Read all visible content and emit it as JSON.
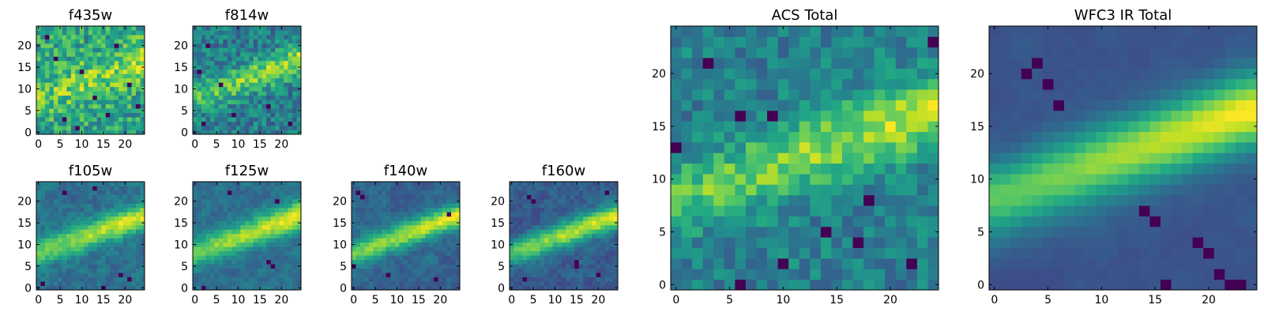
{
  "figure": {
    "description_free": true
  },
  "chart_data": [
    {
      "type": "heatmap",
      "title": "f435w",
      "grid_size": 25,
      "xticks": [
        0,
        5,
        10,
        15,
        20
      ],
      "yticks": [
        0,
        5,
        10,
        15,
        20
      ],
      "colormap": "viridis",
      "features": {
        "noise": 0.55,
        "band_strength": 0.35,
        "band_width": 5.0,
        "floor": 0.55,
        "dark_spots": [
          [
            4,
            17
          ],
          [
            10,
            14
          ],
          [
            6,
            3
          ],
          [
            13,
            8
          ],
          [
            21,
            11
          ],
          [
            9,
            1
          ],
          [
            2,
            22
          ],
          [
            18,
            20
          ],
          [
            16,
            4
          ],
          [
            23,
            6
          ]
        ],
        "smooth": 0,
        "seed": 11
      }
    },
    {
      "type": "heatmap",
      "title": "f814w",
      "grid_size": 25,
      "xticks": [
        0,
        5,
        10,
        15,
        20
      ],
      "yticks": [
        0,
        5,
        10,
        15,
        20
      ],
      "colormap": "viridis",
      "features": {
        "noise": 0.45,
        "band_strength": 0.6,
        "band_width": 3.5,
        "floor": 0.35,
        "dark_spots": [
          [
            2,
            2
          ],
          [
            6,
            11
          ],
          [
            3,
            20
          ],
          [
            17,
            6
          ],
          [
            9,
            4
          ],
          [
            1,
            14
          ],
          [
            22,
            2
          ]
        ],
        "smooth": 0,
        "seed": 23
      }
    },
    {
      "type": "heatmap",
      "title": "f105w",
      "grid_size": 25,
      "xticks": [
        0,
        5,
        10,
        15,
        20
      ],
      "yticks": [
        0,
        5,
        10,
        15,
        20
      ],
      "colormap": "viridis",
      "features": {
        "noise": 0.35,
        "band_strength": 0.75,
        "band_width": 3.0,
        "floor": 0.25,
        "dark_spots": [
          [
            13,
            23
          ],
          [
            21,
            2
          ],
          [
            19,
            3
          ],
          [
            1,
            1
          ],
          [
            15,
            0
          ],
          [
            6,
            22
          ]
        ],
        "smooth": 1,
        "seed": 37
      }
    },
    {
      "type": "heatmap",
      "title": "f125w",
      "grid_size": 25,
      "xticks": [
        0,
        5,
        10,
        15,
        20
      ],
      "yticks": [
        0,
        5,
        10,
        15,
        20
      ],
      "colormap": "viridis",
      "features": {
        "noise": 0.3,
        "band_strength": 0.8,
        "band_width": 3.2,
        "floor": 0.25,
        "dark_spots": [
          [
            2,
            0
          ],
          [
            17,
            6
          ],
          [
            18,
            5
          ],
          [
            19,
            20
          ],
          [
            8,
            22
          ]
        ],
        "smooth": 1,
        "seed": 41
      }
    },
    {
      "type": "heatmap",
      "title": "f140w",
      "grid_size": 25,
      "xticks": [
        0,
        5,
        10,
        15,
        20
      ],
      "yticks": [
        0,
        5,
        10,
        15,
        20
      ],
      "colormap": "viridis",
      "features": {
        "noise": 0.3,
        "band_strength": 0.85,
        "band_width": 2.8,
        "floor": 0.2,
        "dark_spots": [
          [
            1,
            22
          ],
          [
            2,
            21
          ],
          [
            8,
            3
          ],
          [
            19,
            2
          ],
          [
            22,
            17
          ],
          [
            0,
            5
          ]
        ],
        "smooth": 1,
        "seed": 53
      }
    },
    {
      "type": "heatmap",
      "title": "f160w",
      "grid_size": 25,
      "xticks": [
        0,
        5,
        10,
        15,
        20
      ],
      "yticks": [
        0,
        5,
        10,
        15,
        20
      ],
      "colormap": "viridis",
      "features": {
        "noise": 0.3,
        "band_strength": 0.85,
        "band_width": 2.8,
        "floor": 0.15,
        "dark_spots": [
          [
            4,
            21
          ],
          [
            5,
            20
          ],
          [
            15,
            6
          ],
          [
            15,
            5
          ],
          [
            20,
            3
          ],
          [
            3,
            2
          ],
          [
            22,
            22
          ]
        ],
        "smooth": 1,
        "seed": 67
      }
    },
    {
      "type": "heatmap",
      "title": "ACS Total",
      "grid_size": 25,
      "xticks": [
        0,
        5,
        10,
        15,
        20
      ],
      "yticks": [
        0,
        5,
        10,
        15,
        20
      ],
      "colormap": "viridis",
      "features": {
        "noise": 0.35,
        "band_strength": 0.6,
        "band_width": 3.5,
        "floor": 0.35,
        "dark_spots": [
          [
            3,
            21
          ],
          [
            6,
            16
          ],
          [
            9,
            16
          ],
          [
            0,
            13
          ],
          [
            18,
            8
          ],
          [
            17,
            4
          ],
          [
            22,
            2
          ],
          [
            10,
            2
          ],
          [
            6,
            0
          ],
          [
            24,
            23
          ],
          [
            14,
            5
          ]
        ],
        "smooth": 0,
        "seed": 79
      }
    },
    {
      "type": "heatmap",
      "title": "WFC3 IR Total",
      "grid_size": 25,
      "xticks": [
        0,
        5,
        10,
        15,
        20
      ],
      "yticks": [
        0,
        5,
        10,
        15,
        20
      ],
      "colormap": "viridis",
      "features": {
        "noise": 0.12,
        "band_strength": 0.95,
        "band_width": 3.2,
        "floor": 0.12,
        "dark_spots": [
          [
            3,
            20
          ],
          [
            4,
            21
          ],
          [
            5,
            19
          ],
          [
            6,
            17
          ],
          [
            14,
            7
          ],
          [
            15,
            6
          ],
          [
            19,
            4
          ],
          [
            20,
            3
          ],
          [
            21,
            1
          ],
          [
            22,
            0
          ],
          [
            23,
            0
          ],
          [
            16,
            0
          ]
        ],
        "smooth": 2,
        "seed": 97
      }
    }
  ]
}
